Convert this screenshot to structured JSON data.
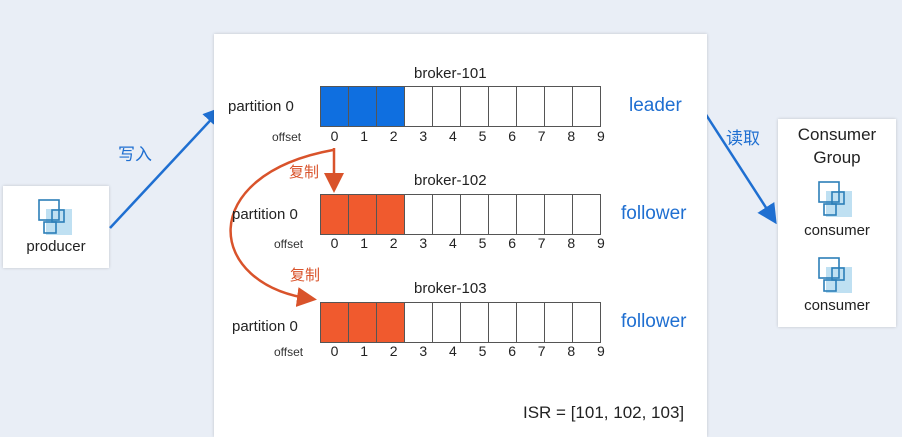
{
  "colors": {
    "leader_fill": "#0f6fe0",
    "follower_fill": "#f05a2e",
    "arrow_blue": "#1f6fd1",
    "arrow_orange": "#d9532b",
    "role_text": "#1f6fd1"
  },
  "producer": {
    "label": "producer",
    "icon": "app-block-icon"
  },
  "write_label": "写入",
  "read_label": "读取",
  "brokers": [
    {
      "name": "broker-101",
      "partition_label": "partition 0",
      "offset_label": "offset",
      "role": "leader",
      "filled_cells": 3,
      "offsets": [
        "0",
        "1",
        "2",
        "3",
        "4",
        "5",
        "6",
        "7",
        "8",
        "9"
      ]
    },
    {
      "name": "broker-102",
      "partition_label": "partition 0",
      "offset_label": "offset",
      "role": "follower",
      "filled_cells": 3,
      "offsets": [
        "0",
        "1",
        "2",
        "3",
        "4",
        "5",
        "6",
        "7",
        "8",
        "9"
      ]
    },
    {
      "name": "broker-103",
      "partition_label": "partition 0",
      "offset_label": "offset",
      "role": "follower",
      "filled_cells": 3,
      "offsets": [
        "0",
        "1",
        "2",
        "3",
        "4",
        "5",
        "6",
        "7",
        "8",
        "9"
      ]
    }
  ],
  "copy_labels": [
    "复制",
    "复制"
  ],
  "isr": "ISR = [101, 102, 103]",
  "consumer_group": {
    "title_line1": "Consumer",
    "title_line2": "Group",
    "consumers": [
      "consumer",
      "consumer"
    ]
  }
}
